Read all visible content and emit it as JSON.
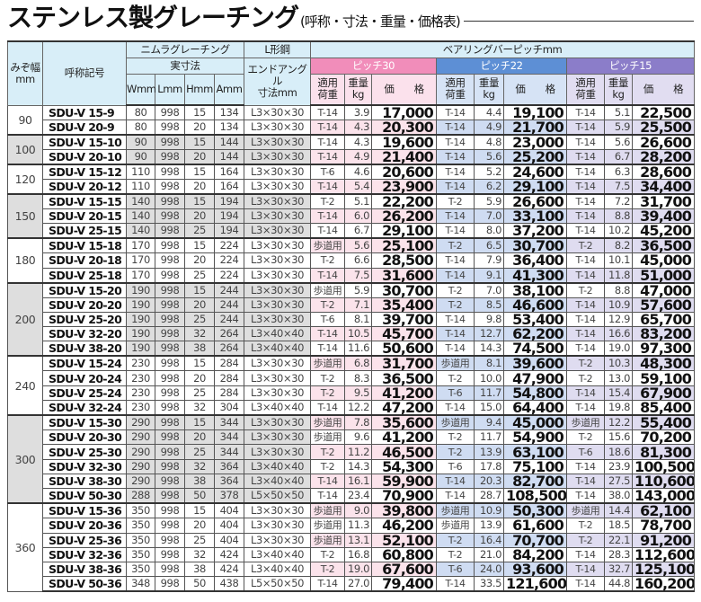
{
  "title": {
    "main": "ステンレス製グレーチング",
    "sub": "(呼称・寸法・重量・価格表)"
  },
  "header": {
    "width": "みぞ幅\nmm",
    "code": "呼称記号",
    "nimura": "ニムラグレーチング",
    "actual": "実寸法",
    "angle_group": "L形鋼",
    "angle": "エンドアングル\n寸法mm",
    "pitch_group": "ベアリングバーピッチmm",
    "dims": [
      "Wmm",
      "Lmm",
      "Hmm",
      "Amm"
    ],
    "pitches": [
      "ピッチ30",
      "ピッチ22",
      "ピッチ15"
    ],
    "load": "適用\n荷重",
    "kg": "重量\nkg",
    "price": "価　　格"
  },
  "colors": {
    "pitch30": "#f18dba",
    "pitch22": "#5d8fd5",
    "pitch15": "#8b7dc9",
    "header": "#d8eef8"
  },
  "groups": [
    {
      "width": "90",
      "rows": [
        [
          "SDU-V 15-9",
          "80",
          "998",
          "15",
          "134",
          "L3×30×30",
          "T-14",
          "3.9",
          "17,000",
          "T-14",
          "4.4",
          "19,100",
          "T-14",
          "5.1",
          "22,500"
        ],
        [
          "SDU-V 20-9",
          "80",
          "998",
          "20",
          "134",
          "L3×30×30",
          "T-14",
          "4.3",
          "20,300",
          "T-14",
          "4.9",
          "21,700",
          "T-14",
          "5.9",
          "25,500"
        ]
      ]
    },
    {
      "width": "100",
      "rows": [
        [
          "SDU-V 15-10",
          "90",
          "998",
          "15",
          "144",
          "L3×30×30",
          "T-14",
          "4.3",
          "19,600",
          "T-14",
          "4.8",
          "23,000",
          "T-14",
          "5.6",
          "26,600"
        ],
        [
          "SDU-V 20-10",
          "90",
          "998",
          "20",
          "144",
          "L3×30×30",
          "T-14",
          "4.9",
          "21,400",
          "T-14",
          "5.6",
          "25,200",
          "T-14",
          "6.7",
          "28,200"
        ]
      ]
    },
    {
      "width": "120",
      "rows": [
        [
          "SDU-V 15-12",
          "110",
          "998",
          "15",
          "164",
          "L3×30×30",
          "T-6",
          "4.6",
          "20,600",
          "T-14",
          "5.2",
          "24,600",
          "T-14",
          "6.3",
          "28,600"
        ],
        [
          "SDU-V 20-12",
          "110",
          "998",
          "20",
          "164",
          "L3×30×30",
          "T-14",
          "5.4",
          "23,900",
          "T-14",
          "6.2",
          "29,100",
          "T-14",
          "7.5",
          "34,400"
        ]
      ]
    },
    {
      "width": "150",
      "rows": [
        [
          "SDU-V 15-15",
          "140",
          "998",
          "15",
          "194",
          "L3×30×30",
          "T-2",
          "5.1",
          "22,200",
          "T-2",
          "5.9",
          "26,600",
          "T-14",
          "7.2",
          "31,700"
        ],
        [
          "SDU-V 20-15",
          "140",
          "998",
          "20",
          "194",
          "L3×30×30",
          "T-14",
          "6.0",
          "26,200",
          "T-14",
          "7.0",
          "33,100",
          "T-14",
          "8.8",
          "39,400"
        ],
        [
          "SDU-V 25-15",
          "140",
          "998",
          "25",
          "194",
          "L3×30×30",
          "T-14",
          "6.7",
          "29,100",
          "T-14",
          "8.0",
          "37,200",
          "T-14",
          "10.2",
          "45,200"
        ]
      ]
    },
    {
      "width": "180",
      "rows": [
        [
          "SDU-V 15-18",
          "170",
          "998",
          "15",
          "224",
          "L3×30×30",
          "歩道用",
          "5.6",
          "25,100",
          "T-2",
          "6.5",
          "30,700",
          "T-2",
          "8.2",
          "36,500"
        ],
        [
          "SDU-V 20-18",
          "170",
          "998",
          "20",
          "224",
          "L3×30×30",
          "T-2",
          "6.6",
          "28,500",
          "T-14",
          "7.9",
          "36,400",
          "T-14",
          "10.1",
          "45,000"
        ],
        [
          "SDU-V 25-18",
          "170",
          "998",
          "25",
          "224",
          "L3×30×30",
          "T-14",
          "7.5",
          "31,600",
          "T-14",
          "9.1",
          "41,300",
          "T-14",
          "11.8",
          "51,000"
        ]
      ]
    },
    {
      "width": "200",
      "rows": [
        [
          "SDU-V 15-20",
          "190",
          "998",
          "15",
          "244",
          "L3×30×30",
          "歩道用",
          "5.9",
          "30,700",
          "T-2",
          "7.0",
          "38,100",
          "T-2",
          "8.8",
          "47,000"
        ],
        [
          "SDU-V 20-20",
          "190",
          "998",
          "20",
          "244",
          "L3×30×30",
          "T-2",
          "7.1",
          "35,400",
          "T-2",
          "8.5",
          "46,600",
          "T-14",
          "10.9",
          "57,600"
        ],
        [
          "SDU-V 25-20",
          "190",
          "998",
          "25",
          "244",
          "L3×30×30",
          "T-6",
          "8.1",
          "39,700",
          "T-14",
          "9.8",
          "53,400",
          "T-14",
          "12.9",
          "65,700"
        ],
        [
          "SDU-V 32-20",
          "190",
          "998",
          "32",
          "264",
          "L3×40×40",
          "T-14",
          "10.5",
          "45,700",
          "T-14",
          "12.7",
          "62,200",
          "T-14",
          "16.6",
          "83,200"
        ],
        [
          "SDU-V 38-20",
          "190",
          "998",
          "38",
          "264",
          "L3×40×40",
          "T-14",
          "11.6",
          "50,600",
          "T-14",
          "14.3",
          "74,500",
          "T-14",
          "19.0",
          "97,300"
        ]
      ]
    },
    {
      "width": "240",
      "rows": [
        [
          "SDU-V 15-24",
          "230",
          "998",
          "15",
          "284",
          "L3×30×30",
          "歩道用",
          "6.8",
          "31,700",
          "歩道用",
          "8.1",
          "39,600",
          "T-2",
          "10.3",
          "48,300"
        ],
        [
          "SDU-V 20-24",
          "230",
          "998",
          "20",
          "284",
          "L3×30×30",
          "T-2",
          "8.3",
          "36,500",
          "T-2",
          "10.0",
          "47,900",
          "T-2",
          "13.0",
          "59,100"
        ],
        [
          "SDU-V 25-24",
          "230",
          "998",
          "25",
          "284",
          "L3×30×30",
          "T-2",
          "9.5",
          "41,200",
          "T-6",
          "11.7",
          "54,800",
          "T-14",
          "15.4",
          "67,900"
        ],
        [
          "SDU-V 32-24",
          "230",
          "998",
          "32",
          "304",
          "L3×40×40",
          "T-14",
          "12.2",
          "47,200",
          "T-14",
          "15.0",
          "64,400",
          "T-14",
          "19.8",
          "85,400"
        ]
      ]
    },
    {
      "width": "300",
      "rows": [
        [
          "SDU-V 15-30",
          "290",
          "998",
          "15",
          "344",
          "L3×30×30",
          "歩道用",
          "7.8",
          "35,600",
          "歩道用",
          "9.4",
          "45,000",
          "歩道用",
          "12.2",
          "55,400"
        ],
        [
          "SDU-V 20-30",
          "290",
          "998",
          "20",
          "344",
          "L3×30×30",
          "歩道用",
          "9.6",
          "41,200",
          "T-2",
          "11.7",
          "54,900",
          "T-2",
          "15.6",
          "70,200"
        ],
        [
          "SDU-V 25-30",
          "290",
          "998",
          "25",
          "344",
          "L3×30×30",
          "T-2",
          "11.2",
          "46,500",
          "T-2",
          "13.9",
          "63,100",
          "T-6",
          "18.6",
          "81,300"
        ],
        [
          "SDU-V 32-30",
          "290",
          "998",
          "32",
          "364",
          "L3×40×40",
          "T-2",
          "14.3",
          "54,300",
          "T-6",
          "17.8",
          "75,100",
          "T-14",
          "23.9",
          "100,500"
        ],
        [
          "SDU-V 38-30",
          "290",
          "998",
          "38",
          "364",
          "L3×40×40",
          "T-14",
          "16.1",
          "59,900",
          "T-14",
          "20.3",
          "82,700",
          "T-14",
          "27.5",
          "110,600"
        ],
        [
          "SDU-V 50-30",
          "288",
          "998",
          "50",
          "378",
          "L5×50×50",
          "T-14",
          "23.4",
          "70,900",
          "T-14",
          "28.7",
          "108,500",
          "T-14",
          "38.0",
          "143,000"
        ]
      ]
    },
    {
      "width": "360",
      "rows": [
        [
          "SDU-V 15-36",
          "350",
          "998",
          "15",
          "404",
          "L3×30×30",
          "歩道用",
          "9.0",
          "39,800",
          "歩道用",
          "10.9",
          "50,300",
          "歩道用",
          "14.4",
          "62,100"
        ],
        [
          "SDU-V 20-36",
          "350",
          "998",
          "20",
          "404",
          "L3×30×30",
          "歩道用",
          "11.3",
          "46,200",
          "歩道用",
          "13.9",
          "61,600",
          "T-2",
          "18.5",
          "78,700"
        ],
        [
          "SDU-V 25-36",
          "350",
          "998",
          "25",
          "404",
          "L3×30×30",
          "歩道用",
          "13.1",
          "52,100",
          "T-2",
          "16.4",
          "70,700",
          "T-2",
          "22.1",
          "91,200"
        ],
        [
          "SDU-V 32-36",
          "350",
          "998",
          "32",
          "424",
          "L3×40×40",
          "T-2",
          "16.8",
          "60,800",
          "T-2",
          "21.0",
          "84,200",
          "T-14",
          "28.3",
          "112,600"
        ],
        [
          "SDU-V 38-36",
          "350",
          "998",
          "38",
          "424",
          "L3×40×40",
          "T-2",
          "19.0",
          "67,600",
          "T-6",
          "24.0",
          "93,600",
          "T-14",
          "32.7",
          "125,100"
        ],
        [
          "SDU-V 50-36",
          "348",
          "998",
          "50",
          "438",
          "L5×50×50",
          "T-14",
          "27.0",
          "79,400",
          "T-14",
          "33.5",
          "121,600",
          "T-14",
          "44.8",
          "160,200"
        ]
      ]
    }
  ]
}
